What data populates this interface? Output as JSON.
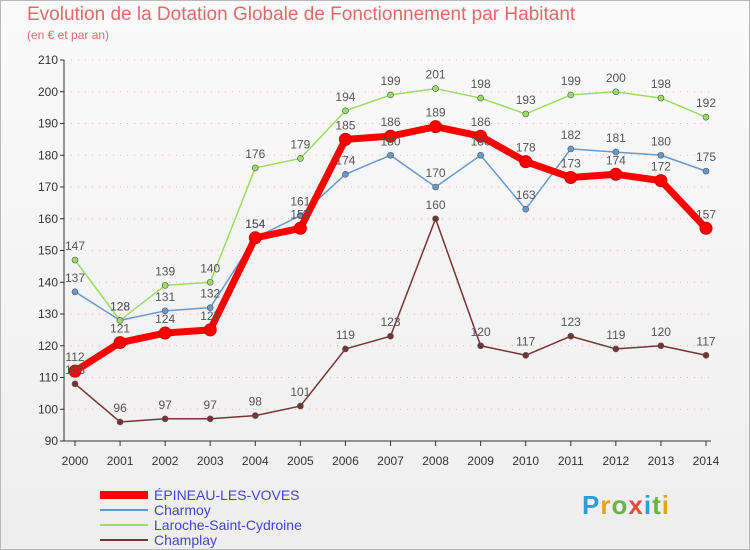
{
  "header": {
    "title": "Evolution de la Dotation Globale de Fonctionnement par Habitant",
    "subtitle": "(en € et par an)"
  },
  "branding": {
    "logo_text": "Proxiti"
  },
  "colors": {
    "title": "#e06a6a",
    "axis": "#333333",
    "grid_dots": "#ff6666",
    "legend_text": "#4444cc"
  },
  "chart_data": {
    "type": "line",
    "title": "Evolution de la Dotation Globale de Fonctionnement par Habitant",
    "subtitle": "(en € et par an)",
    "xlabel": "",
    "ylabel": "",
    "x": [
      "2000",
      "2001",
      "2002",
      "2003",
      "2004",
      "2005",
      "2006",
      "2007",
      "2008",
      "2009",
      "2010",
      "2011",
      "2012",
      "2013",
      "2014"
    ],
    "ylim": [
      90,
      210
    ],
    "yticks": [
      90,
      100,
      110,
      120,
      130,
      140,
      150,
      160,
      170,
      180,
      190,
      200,
      210
    ],
    "legend_position": "bottom-left",
    "series": [
      {
        "name": "ÉPINEAU-LES-VOVES",
        "color": "#ff0000",
        "width": 7,
        "values": [
          112,
          121,
          124,
          125,
          154,
          157,
          185,
          186,
          189,
          186,
          178,
          173,
          174,
          172,
          157
        ],
        "labels": [
          "112",
          "121",
          "124",
          "125",
          "154",
          "157",
          "185",
          "186",
          "189",
          "186",
          "178",
          "173",
          "174",
          "172",
          "157"
        ]
      },
      {
        "name": "Charmoy",
        "color": "#6699cc",
        "width": 1.5,
        "values": [
          137,
          128,
          131,
          132,
          154,
          161,
          174,
          180,
          170,
          180,
          163,
          182,
          181,
          180,
          175
        ],
        "labels": [
          "137",
          "128",
          "131",
          "132",
          "154",
          "161",
          "174",
          "180",
          "170",
          "180",
          "163",
          "182",
          "181",
          "180",
          "175"
        ]
      },
      {
        "name": "Laroche-Saint-Cydroine",
        "color": "#99dd66",
        "width": 1.5,
        "values": [
          147,
          128,
          139,
          140,
          176,
          179,
          194,
          199,
          201,
          198,
          193,
          199,
          200,
          198,
          192
        ],
        "labels": [
          "147",
          "128",
          "139",
          "140",
          "176",
          "179",
          "194",
          "199",
          "201",
          "198",
          "193",
          "199",
          "200",
          "198",
          "192"
        ]
      },
      {
        "name": "Champlay",
        "color": "#773333",
        "width": 1.5,
        "values": [
          108,
          96,
          97,
          97,
          98,
          101,
          119,
          123,
          160,
          120,
          117,
          123,
          119,
          120,
          117
        ],
        "labels": [
          "108",
          "96",
          "97",
          "97",
          "98",
          "101",
          "119",
          "123",
          "160",
          "120",
          "117",
          "123",
          "119",
          "120",
          "117"
        ]
      }
    ]
  }
}
